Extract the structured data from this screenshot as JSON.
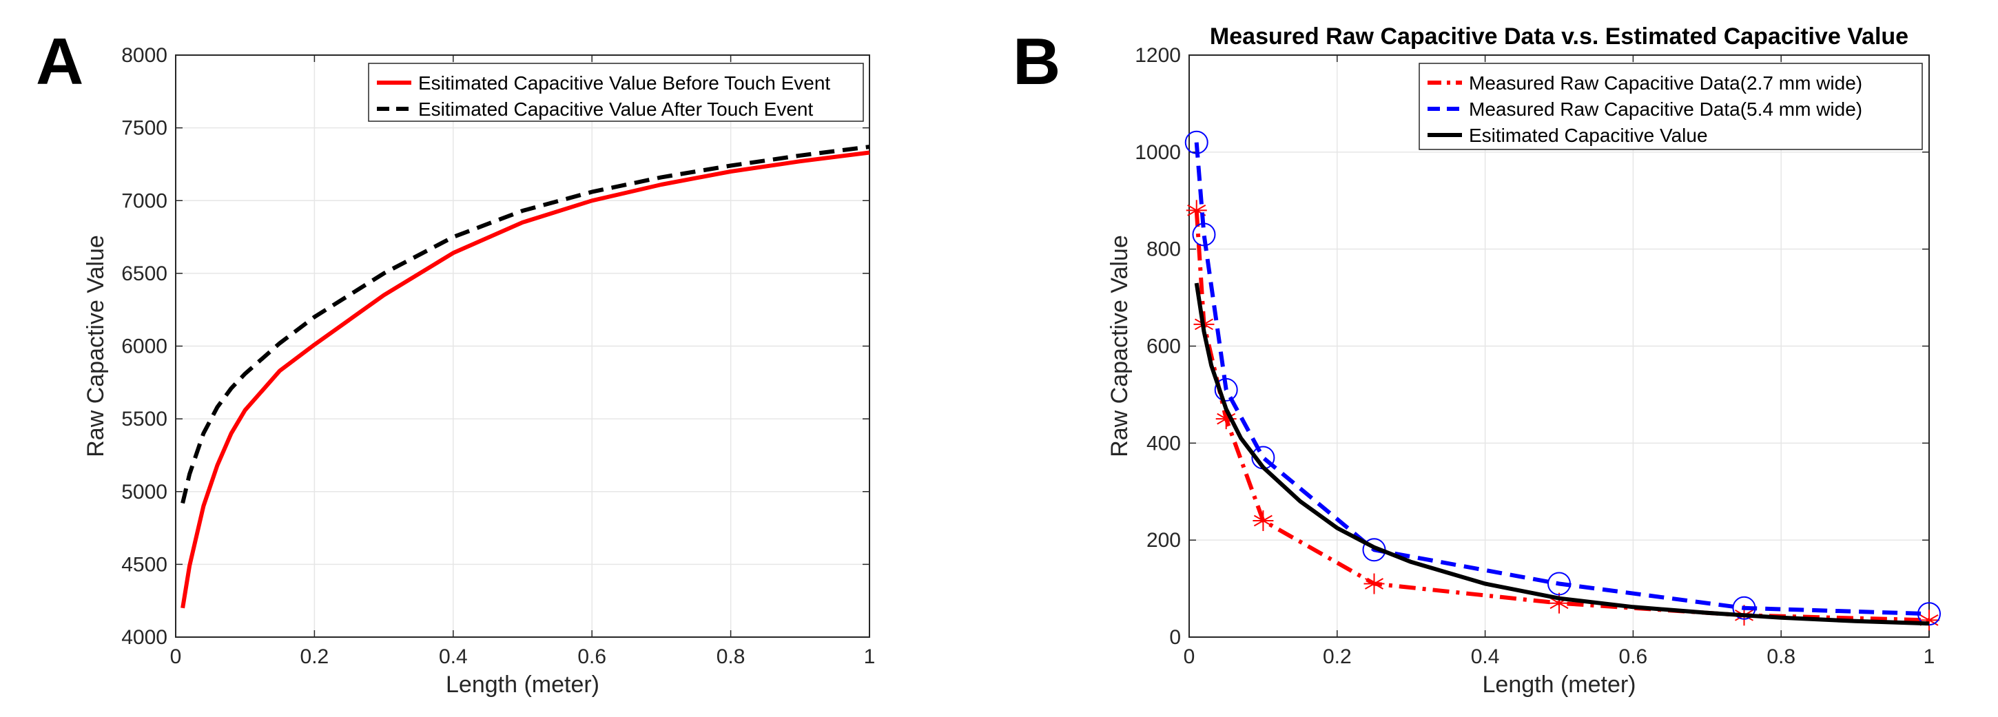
{
  "figure": {
    "panels": [
      "A",
      "B"
    ]
  },
  "chart_data": [
    {
      "type": "line",
      "panel": "A",
      "title": "",
      "xlabel": "Length (meter)",
      "ylabel": "Raw Capactive Value",
      "xlim": [
        0,
        1
      ],
      "ylim": [
        4000,
        8000
      ],
      "xticks": [
        "0",
        "0.2",
        "0.4",
        "0.6",
        "0.8",
        "1"
      ],
      "yticks": [
        "4000",
        "4500",
        "5000",
        "5500",
        "6000",
        "6500",
        "7000",
        "7500",
        "8000"
      ],
      "grid": true,
      "legend_position": "top-right",
      "series": [
        {
          "name": "Esitimated Capacitive Value Before Touch Event",
          "color": "#ff0000",
          "style": "solid",
          "x": [
            0.01,
            0.02,
            0.04,
            0.06,
            0.08,
            0.1,
            0.15,
            0.2,
            0.3,
            0.4,
            0.5,
            0.6,
            0.7,
            0.8,
            0.9,
            1.0
          ],
          "y": [
            4200,
            4490,
            4900,
            5180,
            5400,
            5560,
            5830,
            6010,
            6350,
            6640,
            6850,
            7000,
            7110,
            7200,
            7270,
            7330
          ]
        },
        {
          "name": "Esitimated Capacitive Value After Touch Event",
          "color": "#000000",
          "style": "dashed",
          "x": [
            0.01,
            0.02,
            0.04,
            0.06,
            0.08,
            0.1,
            0.15,
            0.2,
            0.3,
            0.4,
            0.5,
            0.6,
            0.7,
            0.8,
            0.9,
            1.0
          ],
          "y": [
            4920,
            5120,
            5400,
            5580,
            5710,
            5810,
            6020,
            6200,
            6500,
            6750,
            6930,
            7060,
            7160,
            7240,
            7310,
            7370
          ]
        }
      ]
    },
    {
      "type": "line",
      "panel": "B",
      "title": "Measured Raw Capacitive Data v.s. Estimated Capacitive Value",
      "xlabel": "Length (meter)",
      "ylabel": "Raw Capactive Value",
      "xlim": [
        0,
        1
      ],
      "ylim": [
        0,
        1200
      ],
      "xticks": [
        "0",
        "0.2",
        "0.4",
        "0.6",
        "0.8",
        "1"
      ],
      "yticks": [
        "0",
        "200",
        "400",
        "600",
        "800",
        "1000",
        "1200"
      ],
      "grid": true,
      "legend_position": "top-right",
      "series": [
        {
          "name": "Measured Raw Capacitive Data(2.7 mm wide)",
          "color": "#ff0000",
          "style": "dashdot",
          "marker": "asterisk",
          "x": [
            0.01,
            0.02,
            0.05,
            0.1,
            0.25,
            0.5,
            0.75,
            1.0
          ],
          "y": [
            880,
            645,
            450,
            240,
            110,
            70,
            45,
            35
          ]
        },
        {
          "name": "Measured Raw Capacitive Data(5.4 mm wide)",
          "color": "#0000ff",
          "style": "dashed",
          "marker": "circle",
          "x": [
            0.01,
            0.02,
            0.05,
            0.1,
            0.25,
            0.5,
            0.75,
            1.0
          ],
          "y": [
            1020,
            830,
            510,
            370,
            180,
            110,
            60,
            48
          ]
        },
        {
          "name": "Esitimated Capacitive Value",
          "color": "#000000",
          "style": "solid",
          "marker": "none",
          "x": [
            0.01,
            0.02,
            0.03,
            0.05,
            0.07,
            0.1,
            0.15,
            0.2,
            0.25,
            0.3,
            0.4,
            0.5,
            0.6,
            0.7,
            0.8,
            0.9,
            1.0
          ],
          "y": [
            730,
            630,
            560,
            470,
            410,
            350,
            280,
            225,
            185,
            155,
            110,
            80,
            62,
            50,
            40,
            33,
            28
          ]
        }
      ]
    }
  ]
}
